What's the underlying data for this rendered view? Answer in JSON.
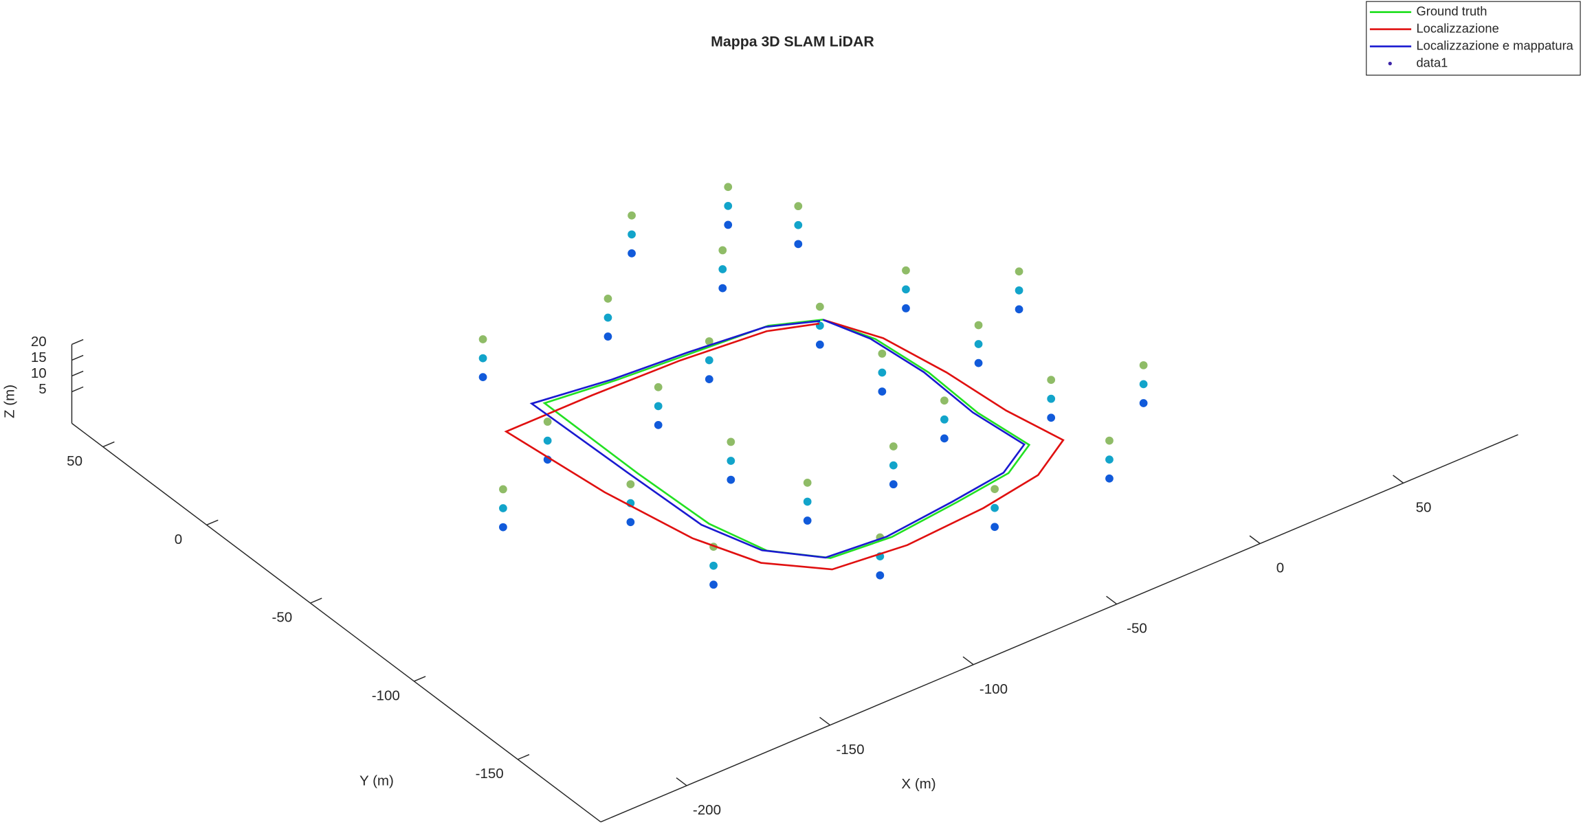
{
  "chart_data": {
    "type": "scatter3d",
    "title": "Mappa 3D SLAM LiDAR",
    "xlabel": "X (m)",
    "ylabel": "Y (m)",
    "zlabel": "Z (m)",
    "xlim": [
      -230,
      90
    ],
    "ylim": [
      -190,
      65
    ],
    "zlim": [
      -5,
      20
    ],
    "xticks": [
      -200,
      -150,
      -100,
      -50,
      0,
      50
    ],
    "yticks": [
      -150,
      -100,
      -50,
      0,
      50
    ],
    "zticks": [
      5,
      10,
      15,
      20
    ],
    "legend": "top-right",
    "series": [
      {
        "name": "Ground truth",
        "color": "#22e022",
        "kind": "line",
        "x": [
          -36,
          -30,
          -28,
          -29,
          -27,
          -40,
          -60,
          -85,
          -105,
          -117,
          -122,
          -123,
          -123,
          -100,
          -75,
          -50,
          -36
        ],
        "y": [
          -29,
          -46,
          -69,
          -94,
          -116,
          -124,
          -127,
          -130,
          -128,
          -114,
          -93,
          -60,
          -15,
          -18,
          -20,
          -22,
          -29
        ]
      },
      {
        "name": "Localizzazione",
        "color": "#e01010",
        "kind": "line",
        "x": [
          -36,
          -28,
          -24,
          -22,
          -18,
          -34,
          -56,
          -84,
          -108,
          -122,
          -130,
          -136,
          -140,
          -110,
          -80,
          -52,
          -38
        ],
        "y": [
          -29,
          -47,
          -72,
          -98,
          -120,
          -130,
          -134,
          -136,
          -133,
          -118,
          -96,
          -62,
          -20,
          -20,
          -21,
          -24,
          -30
        ]
      },
      {
        "name": "Localizzazione e mappatura",
        "color": "#1a1ad0",
        "kind": "line",
        "x": [
          -36,
          -31,
          -29,
          -30,
          -28,
          -41,
          -61,
          -86,
          -106,
          -118,
          -124,
          -125,
          -126,
          -101,
          -76,
          -51,
          -37
        ],
        "y": [
          -29,
          -45,
          -68,
          -93,
          -115,
          -123,
          -126,
          -129,
          -127,
          -113,
          -92,
          -58,
          -13,
          -17,
          -19,
          -22,
          -29
        ]
      },
      {
        "name": "data1",
        "color": "#3e26a8",
        "kind": "points",
        "colormap": "parula",
        "x": [
          -45,
          -45,
          -45,
          -45,
          -45,
          -45,
          -45,
          -45,
          -45,
          -70,
          -70,
          -70,
          -100,
          -100,
          -100,
          -105,
          -105,
          -105,
          -105,
          -105,
          -105,
          -80,
          -80,
          -80,
          -15,
          -15,
          -15,
          -15,
          -15,
          -15,
          -15,
          -15,
          -15,
          -20,
          -20,
          -20,
          -60,
          -60,
          -60,
          -100,
          -100,
          -100,
          -140,
          -140,
          -140,
          -140,
          -140,
          -140,
          -140,
          -140,
          -140,
          -130,
          -130,
          -130,
          -90,
          -90,
          -90,
          -50,
          -50,
          -50,
          -20,
          -20,
          -20,
          10,
          10,
          10,
          10,
          10,
          10,
          -170,
          -170,
          -170,
          -60,
          -60,
          -60,
          -30,
          -30,
          -30
        ],
        "y": [
          -40,
          -40,
          -40,
          -70,
          -70,
          -70,
          -100,
          -100,
          -100,
          -110,
          -110,
          -110,
          -110,
          -110,
          -110,
          -80,
          -80,
          -80,
          -45,
          -45,
          -45,
          -35,
          -35,
          -35,
          -40,
          -40,
          -40,
          -75,
          -75,
          -75,
          -110,
          -110,
          -110,
          -145,
          -145,
          -145,
          -145,
          -145,
          -145,
          -145,
          -145,
          -145,
          -120,
          -120,
          -120,
          -80,
          -80,
          -80,
          -40,
          -40,
          -40,
          5,
          5,
          5,
          0,
          0,
          0,
          0,
          0,
          0,
          5,
          5,
          5,
          -60,
          -60,
          -60,
          -120,
          -120,
          -120,
          -60,
          -60,
          -60,
          30,
          30,
          30,
          25,
          25,
          25
        ],
        "z": [
          1,
          7,
          13,
          1,
          7,
          13,
          1,
          7,
          13,
          1,
          7,
          13,
          1,
          7,
          13,
          1,
          7,
          13,
          1,
          7,
          13,
          1,
          7,
          13,
          1,
          7,
          13,
          1,
          7,
          13,
          1,
          7,
          13,
          1,
          7,
          13,
          1,
          7,
          13,
          1,
          7,
          13,
          1,
          7,
          13,
          1,
          7,
          13,
          1,
          7,
          13,
          1,
          7,
          13,
          1,
          7,
          13,
          1,
          7,
          13,
          1,
          7,
          13,
          1,
          7,
          13,
          1,
          7,
          13,
          1,
          7,
          13,
          1,
          7,
          13,
          1,
          7,
          13
        ]
      }
    ]
  }
}
